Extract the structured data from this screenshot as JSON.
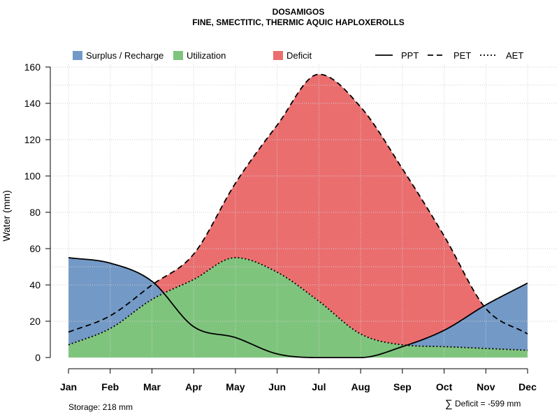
{
  "chart_data": {
    "type": "area",
    "title": "DOSAMIGOS",
    "subtitle": "FINE, SMECTITIC, THERMIC AQUIC HAPLOXEROLLS",
    "xlabel": "",
    "ylabel": "Water (mm)",
    "ylim": [
      0,
      160
    ],
    "yticks": [
      "0",
      "20",
      "40",
      "60",
      "80",
      "100",
      "120",
      "140",
      "160"
    ],
    "categories": [
      "Jan",
      "Feb",
      "Mar",
      "Apr",
      "May",
      "Jun",
      "Jul",
      "Aug",
      "Sep",
      "Oct",
      "Nov",
      "Dec"
    ],
    "series": [
      {
        "name": "PPT",
        "style": "solid",
        "values": [
          55,
          52,
          42,
          17,
          11,
          2,
          0,
          0,
          6,
          15,
          29,
          41
        ]
      },
      {
        "name": "PET",
        "style": "dashed",
        "values": [
          14,
          23,
          40,
          57,
          96,
          128,
          156,
          138,
          104,
          67,
          27,
          13
        ]
      },
      {
        "name": "AET",
        "style": "dotted",
        "values": [
          7,
          16,
          32,
          43,
          55,
          47,
          31,
          13,
          7,
          6,
          5,
          4
        ]
      }
    ],
    "areas": [
      {
        "name": "Surplus / Recharge",
        "color": "#7399c6"
      },
      {
        "name": "Utilization",
        "color": "#7fc47d"
      },
      {
        "name": "Deficit",
        "color": "#eb6e6f"
      }
    ],
    "legend_position": "top",
    "grid": true
  },
  "annotations": {
    "storage": "Storage: 218 mm",
    "deficit": "Deficit = -599 mm",
    "sum_symbol": "∑"
  }
}
